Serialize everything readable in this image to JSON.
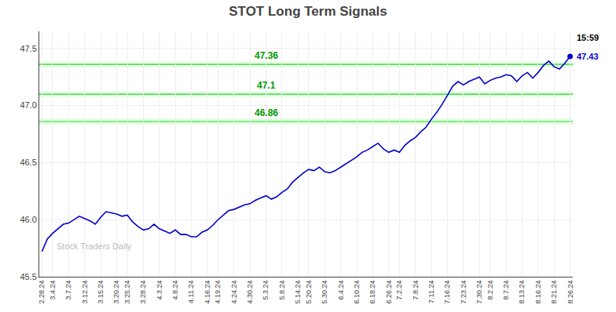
{
  "chart_data": {
    "type": "line",
    "title": "STOT Long Term Signals",
    "categories": [
      "2.28.24",
      null,
      "3.4.24",
      null,
      null,
      "3.7.24",
      null,
      null,
      "3.12.24",
      null,
      null,
      "3.15.24",
      null,
      null,
      "3.20.24",
      null,
      "3.25.24",
      null,
      null,
      "3.28.24",
      null,
      null,
      "4.3.24",
      null,
      null,
      "4.8.24",
      null,
      null,
      "4.11.24",
      null,
      null,
      "4.16.24",
      null,
      "4.19.24",
      null,
      null,
      "4.24.24",
      null,
      null,
      "4.30.24",
      null,
      null,
      "5.3.24",
      null,
      null,
      "5.8.24",
      null,
      null,
      "5.14.24",
      null,
      "5.20.24",
      null,
      null,
      "5.30.24",
      null,
      null,
      "6.4.24",
      null,
      null,
      "6.10.24",
      null,
      null,
      "6.18.24",
      null,
      null,
      "6.26.24",
      null,
      "7.2.24",
      null,
      null,
      "7.8.24",
      null,
      null,
      "7.11.24",
      null,
      null,
      "7.16.24",
      null,
      null,
      "7.23.24",
      null,
      null,
      "7.30.24",
      null,
      "8.2.24",
      null,
      null,
      "8.7.24",
      null,
      null,
      "8.13.24",
      null,
      null,
      "8.16.24",
      null,
      null,
      "8.21.24",
      null,
      null,
      "8.26.24"
    ],
    "values": [
      45.72,
      45.83,
      45.88,
      45.92,
      45.96,
      45.97,
      46.0,
      46.03,
      46.01,
      45.99,
      45.96,
      46.02,
      46.07,
      46.06,
      46.05,
      46.03,
      46.04,
      45.98,
      45.94,
      45.91,
      45.92,
      45.96,
      45.92,
      45.9,
      45.88,
      45.91,
      45.87,
      45.87,
      45.85,
      45.85,
      45.89,
      45.91,
      45.95,
      46.0,
      46.04,
      46.08,
      46.09,
      46.11,
      46.13,
      46.14,
      46.17,
      46.19,
      46.21,
      46.18,
      46.2,
      46.24,
      46.27,
      46.33,
      46.37,
      46.41,
      46.44,
      46.43,
      46.46,
      46.42,
      46.41,
      46.43,
      46.46,
      46.49,
      46.52,
      46.55,
      46.59,
      46.61,
      46.64,
      46.67,
      46.62,
      46.59,
      46.61,
      46.59,
      46.65,
      46.69,
      46.72,
      46.77,
      46.81,
      46.88,
      46.94,
      47.01,
      47.09,
      47.17,
      47.21,
      47.18,
      47.21,
      47.23,
      47.25,
      47.19,
      47.22,
      47.24,
      47.25,
      47.27,
      47.26,
      47.21,
      47.26,
      47.29,
      47.24,
      47.29,
      47.35,
      47.39,
      47.34,
      47.32,
      47.37,
      47.43
    ],
    "color": "#0000cc",
    "ylim": [
      45.5,
      47.65
    ],
    "yticks": [
      45.5,
      {
        "value": 46.0,
        "label": "46.0"
      },
      46.5,
      {
        "value": 47.0,
        "label": "47.0"
      },
      47.5
    ],
    "grid": true,
    "hlines": [
      {
        "value": 47.36,
        "label": "47.36",
        "color": "#33cc33",
        "label_color": "#009900",
        "band": [
          47.335,
          47.385
        ],
        "band_color": "#aaffaa"
      },
      {
        "value": 47.1,
        "label": "47.1",
        "color": "#33cc33",
        "label_color": "#009900",
        "band": [
          47.075,
          47.125
        ],
        "band_color": "#aaffaa"
      },
      {
        "value": 46.86,
        "label": "46.86",
        "color": "#33cc33",
        "label_color": "#009900",
        "band": [
          46.835,
          46.885
        ],
        "band_color": "#aaffaa"
      }
    ],
    "annotations": [
      {
        "text": "Stock Traders Daily",
        "color": "#bbbbbb"
      },
      {
        "text": "15:59",
        "color": "#000000"
      },
      {
        "text": "47.43",
        "color": "#0000cc",
        "value": 47.43
      }
    ]
  }
}
